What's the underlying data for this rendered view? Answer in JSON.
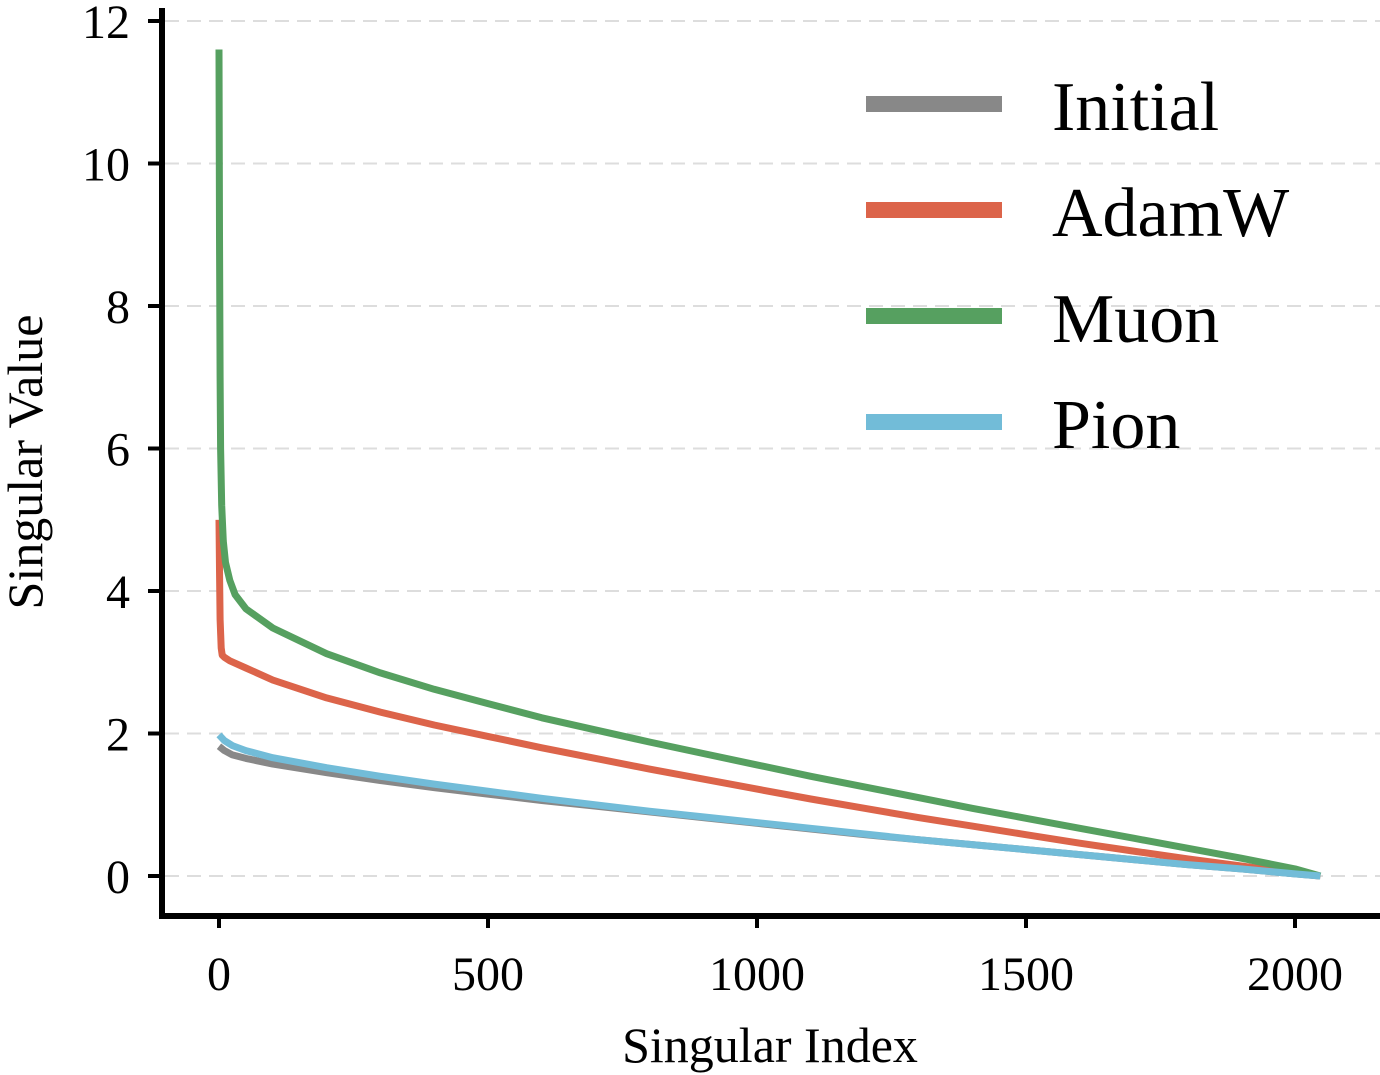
{
  "chart_data": {
    "type": "line",
    "xlabel": "Singular Index",
    "ylabel": "Singular Value",
    "xlim": [
      -100,
      2150
    ],
    "ylim": [
      -0.6,
      12.2
    ],
    "xticks": [
      0,
      500,
      1000,
      1500,
      2000
    ],
    "xtick_labels": [
      "0",
      "500",
      "1000",
      "1500",
      "2000"
    ],
    "yticks": [
      0,
      2,
      4,
      6,
      8,
      10,
      12
    ],
    "ytick_labels": [
      "0",
      "2",
      "4",
      "6",
      "8",
      "10",
      "12"
    ],
    "grid": "horizontal dashed",
    "legend_position": "top-right",
    "series": [
      {
        "name": "Initial",
        "color": "#888888",
        "x": [
          0,
          10,
          25,
          50,
          100,
          200,
          300,
          400,
          500,
          600,
          700,
          800,
          900,
          1000,
          1100,
          1200,
          1300,
          1400,
          1500,
          1600,
          1700,
          1800,
          1900,
          2000,
          2047
        ],
        "y": [
          1.82,
          1.76,
          1.7,
          1.65,
          1.57,
          1.45,
          1.34,
          1.24,
          1.15,
          1.06,
          0.98,
          0.9,
          0.82,
          0.74,
          0.66,
          0.58,
          0.51,
          0.44,
          0.37,
          0.3,
          0.23,
          0.16,
          0.1,
          0.03,
          0.0
        ]
      },
      {
        "name": "AdamW",
        "color": "#dc644a",
        "x": [
          0,
          1,
          2,
          4,
          6,
          10,
          20,
          50,
          100,
          200,
          300,
          400,
          500,
          600,
          700,
          800,
          900,
          1000,
          1100,
          1200,
          1300,
          1400,
          1500,
          1600,
          1700,
          1800,
          1900,
          2000,
          2047
        ],
        "y": [
          5.0,
          4.3,
          3.6,
          3.2,
          3.1,
          3.07,
          3.02,
          2.92,
          2.75,
          2.5,
          2.3,
          2.12,
          1.96,
          1.8,
          1.65,
          1.5,
          1.36,
          1.22,
          1.08,
          0.95,
          0.82,
          0.7,
          0.58,
          0.46,
          0.35,
          0.24,
          0.14,
          0.04,
          0.0
        ]
      },
      {
        "name": "Muon",
        "color": "#56a060",
        "x": [
          0,
          1,
          2,
          3,
          5,
          8,
          12,
          20,
          30,
          50,
          100,
          200,
          300,
          400,
          500,
          600,
          700,
          800,
          900,
          1000,
          1100,
          1200,
          1300,
          1400,
          1500,
          1600,
          1700,
          1800,
          1900,
          2000,
          2047
        ],
        "y": [
          11.6,
          9.0,
          7.0,
          6.0,
          5.2,
          4.7,
          4.4,
          4.15,
          3.95,
          3.75,
          3.48,
          3.12,
          2.85,
          2.62,
          2.42,
          2.22,
          2.05,
          1.88,
          1.72,
          1.56,
          1.4,
          1.25,
          1.1,
          0.95,
          0.81,
          0.67,
          0.53,
          0.39,
          0.25,
          0.1,
          0.0
        ]
      },
      {
        "name": "Pion",
        "color": "#72bcd8",
        "x": [
          0,
          10,
          25,
          50,
          100,
          200,
          300,
          400,
          500,
          600,
          700,
          800,
          900,
          1000,
          1100,
          1200,
          1300,
          1400,
          1500,
          1600,
          1700,
          1800,
          1900,
          2000,
          2047
        ],
        "y": [
          1.98,
          1.9,
          1.83,
          1.76,
          1.66,
          1.52,
          1.4,
          1.29,
          1.19,
          1.09,
          1.0,
          0.91,
          0.83,
          0.75,
          0.67,
          0.59,
          0.51,
          0.44,
          0.37,
          0.3,
          0.23,
          0.16,
          0.1,
          0.03,
          0.0
        ]
      }
    ]
  }
}
